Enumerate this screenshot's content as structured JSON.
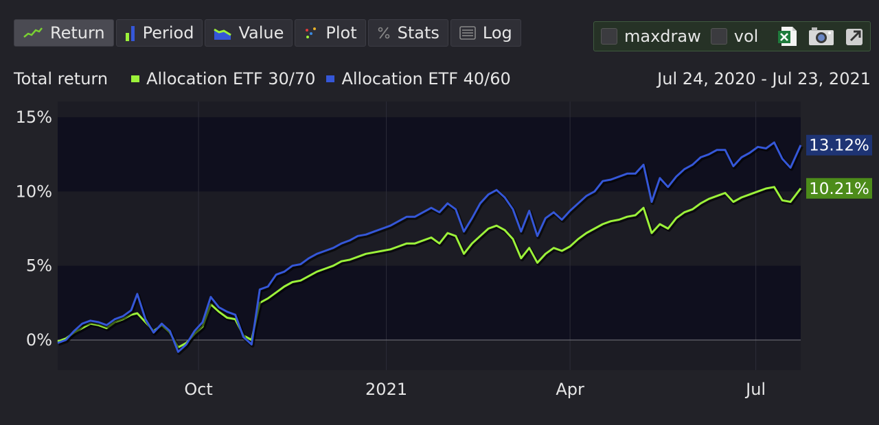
{
  "toolbar": {
    "buttons": [
      {
        "label": "Return",
        "icon": "line-chart-icon",
        "active": true
      },
      {
        "label": "Period",
        "icon": "bar-chart-icon",
        "active": false
      },
      {
        "label": "Value",
        "icon": "area-chart-icon",
        "active": false
      },
      {
        "label": "Plot",
        "icon": "scatter-plot-icon",
        "active": false
      },
      {
        "label": "Stats",
        "icon": "percent-icon",
        "active": false
      },
      {
        "label": "Log",
        "icon": "list-icon",
        "active": false
      }
    ]
  },
  "options": {
    "maxdraw_label": "maxdraw",
    "vol_label": "vol",
    "icons": [
      "excel-icon",
      "camera-icon",
      "share-icon"
    ]
  },
  "header": {
    "title": "Total return",
    "date_range": "Jul 24, 2020 - Jul 23, 2021"
  },
  "colors": {
    "background": "#222228",
    "plot_dark": "#0f0f1e",
    "plot_light": "#1c1c24",
    "series1": "#9cf23a",
    "series2": "#3557d8",
    "badge1": "#4d8c1a",
    "badge2": "#1e3474"
  },
  "chart_data": {
    "type": "line",
    "title": "Total return",
    "ylim": [
      -2,
      15
    ],
    "yticks": [
      0,
      5,
      10,
      15
    ],
    "ytick_labels": [
      "0%",
      "5%",
      "10%",
      "15%"
    ],
    "xlim": [
      "2020-07-24",
      "2021-07-23"
    ],
    "xticks": [
      "2020-10-01",
      "2021-01-01",
      "2021-04-01",
      "2021-07-01"
    ],
    "xtick_labels": [
      "Oct",
      "2021",
      "Apr",
      "Jul"
    ],
    "grid": true,
    "legend_position": "top",
    "series": [
      {
        "name": "Allocation ETF 30/70",
        "color": "#9cf23a",
        "end_label": "10.21%",
        "points": [
          [
            "2020-07-24",
            -0.1
          ],
          [
            "2020-07-28",
            0.1
          ],
          [
            "2020-08-01",
            0.5
          ],
          [
            "2020-08-05",
            0.8
          ],
          [
            "2020-08-09",
            1.1
          ],
          [
            "2020-08-13",
            1.0
          ],
          [
            "2020-08-17",
            0.8
          ],
          [
            "2020-08-21",
            1.2
          ],
          [
            "2020-08-25",
            1.4
          ],
          [
            "2020-08-29",
            1.7
          ],
          [
            "2020-09-01",
            1.8
          ],
          [
            "2020-09-05",
            1.2
          ],
          [
            "2020-09-09",
            0.6
          ],
          [
            "2020-09-13",
            1.0
          ],
          [
            "2020-09-17",
            0.5
          ],
          [
            "2020-09-21",
            -0.5
          ],
          [
            "2020-09-25",
            -0.2
          ],
          [
            "2020-09-29",
            0.4
          ],
          [
            "2020-10-03",
            0.9
          ],
          [
            "2020-10-07",
            2.4
          ],
          [
            "2020-10-11",
            1.9
          ],
          [
            "2020-10-15",
            1.5
          ],
          [
            "2020-10-19",
            1.4
          ],
          [
            "2020-10-23",
            0.3
          ],
          [
            "2020-10-27",
            0.0
          ],
          [
            "2020-10-31",
            2.5
          ],
          [
            "2020-11-04",
            2.8
          ],
          [
            "2020-11-08",
            3.2
          ],
          [
            "2020-11-12",
            3.6
          ],
          [
            "2020-11-16",
            3.9
          ],
          [
            "2020-11-20",
            4.0
          ],
          [
            "2020-11-24",
            4.3
          ],
          [
            "2020-11-28",
            4.6
          ],
          [
            "2020-12-02",
            4.8
          ],
          [
            "2020-12-06",
            5.0
          ],
          [
            "2020-12-10",
            5.3
          ],
          [
            "2020-12-14",
            5.4
          ],
          [
            "2020-12-18",
            5.6
          ],
          [
            "2020-12-22",
            5.8
          ],
          [
            "2020-12-26",
            5.9
          ],
          [
            "2020-12-30",
            6.0
          ],
          [
            "2021-01-03",
            6.1
          ],
          [
            "2021-01-07",
            6.3
          ],
          [
            "2021-01-11",
            6.5
          ],
          [
            "2021-01-15",
            6.5
          ],
          [
            "2021-01-19",
            6.7
          ],
          [
            "2021-01-23",
            6.9
          ],
          [
            "2021-01-27",
            6.5
          ],
          [
            "2021-01-31",
            7.2
          ],
          [
            "2021-02-04",
            7.0
          ],
          [
            "2021-02-08",
            5.8
          ],
          [
            "2021-02-12",
            6.5
          ],
          [
            "2021-02-16",
            7.0
          ],
          [
            "2021-02-20",
            7.5
          ],
          [
            "2021-02-24",
            7.7
          ],
          [
            "2021-02-28",
            7.4
          ],
          [
            "2021-03-04",
            6.8
          ],
          [
            "2021-03-08",
            5.5
          ],
          [
            "2021-03-12",
            6.2
          ],
          [
            "2021-03-16",
            5.2
          ],
          [
            "2021-03-20",
            5.8
          ],
          [
            "2021-03-24",
            6.2
          ],
          [
            "2021-03-28",
            6.0
          ],
          [
            "2021-04-01",
            6.3
          ],
          [
            "2021-04-05",
            6.8
          ],
          [
            "2021-04-09",
            7.2
          ],
          [
            "2021-04-13",
            7.5
          ],
          [
            "2021-04-17",
            7.8
          ],
          [
            "2021-04-21",
            8.0
          ],
          [
            "2021-04-25",
            8.1
          ],
          [
            "2021-04-29",
            8.3
          ],
          [
            "2021-05-03",
            8.4
          ],
          [
            "2021-05-07",
            8.9
          ],
          [
            "2021-05-11",
            7.2
          ],
          [
            "2021-05-15",
            7.8
          ],
          [
            "2021-05-19",
            7.5
          ],
          [
            "2021-05-23",
            8.2
          ],
          [
            "2021-05-27",
            8.6
          ],
          [
            "2021-05-31",
            8.8
          ],
          [
            "2021-06-04",
            9.2
          ],
          [
            "2021-06-08",
            9.5
          ],
          [
            "2021-06-12",
            9.7
          ],
          [
            "2021-06-16",
            9.9
          ],
          [
            "2021-06-20",
            9.3
          ],
          [
            "2021-06-24",
            9.6
          ],
          [
            "2021-06-28",
            9.8
          ],
          [
            "2021-07-02",
            10.0
          ],
          [
            "2021-07-06",
            10.2
          ],
          [
            "2021-07-10",
            10.3
          ],
          [
            "2021-07-14",
            9.4
          ],
          [
            "2021-07-18",
            9.3
          ],
          [
            "2021-07-23",
            10.21
          ]
        ]
      },
      {
        "name": "Allocation ETF 40/60",
        "color": "#3557d8",
        "end_label": "13.12%",
        "points": [
          [
            "2020-07-24",
            -0.2
          ],
          [
            "2020-07-28",
            0.0
          ],
          [
            "2020-08-01",
            0.6
          ],
          [
            "2020-08-05",
            1.1
          ],
          [
            "2020-08-09",
            1.3
          ],
          [
            "2020-08-13",
            1.2
          ],
          [
            "2020-08-17",
            1.0
          ],
          [
            "2020-08-21",
            1.4
          ],
          [
            "2020-08-25",
            1.6
          ],
          [
            "2020-08-29",
            2.0
          ],
          [
            "2020-09-01",
            3.1
          ],
          [
            "2020-09-05",
            1.4
          ],
          [
            "2020-09-09",
            0.5
          ],
          [
            "2020-09-13",
            1.1
          ],
          [
            "2020-09-17",
            0.6
          ],
          [
            "2020-09-21",
            -0.8
          ],
          [
            "2020-09-25",
            -0.3
          ],
          [
            "2020-09-29",
            0.6
          ],
          [
            "2020-10-03",
            1.2
          ],
          [
            "2020-10-07",
            2.9
          ],
          [
            "2020-10-11",
            2.2
          ],
          [
            "2020-10-15",
            1.9
          ],
          [
            "2020-10-19",
            1.7
          ],
          [
            "2020-10-23",
            0.2
          ],
          [
            "2020-10-27",
            -0.3
          ],
          [
            "2020-10-31",
            3.4
          ],
          [
            "2020-11-04",
            3.6
          ],
          [
            "2020-11-08",
            4.4
          ],
          [
            "2020-11-12",
            4.6
          ],
          [
            "2020-11-16",
            5.0
          ],
          [
            "2020-11-20",
            5.1
          ],
          [
            "2020-11-24",
            5.5
          ],
          [
            "2020-11-28",
            5.8
          ],
          [
            "2020-12-02",
            6.0
          ],
          [
            "2020-12-06",
            6.2
          ],
          [
            "2020-12-10",
            6.5
          ],
          [
            "2020-12-14",
            6.7
          ],
          [
            "2020-12-18",
            7.0
          ],
          [
            "2020-12-22",
            7.1
          ],
          [
            "2020-12-26",
            7.3
          ],
          [
            "2020-12-30",
            7.5
          ],
          [
            "2021-01-03",
            7.7
          ],
          [
            "2021-01-07",
            8.0
          ],
          [
            "2021-01-11",
            8.3
          ],
          [
            "2021-01-15",
            8.3
          ],
          [
            "2021-01-19",
            8.6
          ],
          [
            "2021-01-23",
            8.9
          ],
          [
            "2021-01-27",
            8.6
          ],
          [
            "2021-01-31",
            9.2
          ],
          [
            "2021-02-04",
            8.8
          ],
          [
            "2021-02-08",
            7.3
          ],
          [
            "2021-02-12",
            8.2
          ],
          [
            "2021-02-16",
            9.2
          ],
          [
            "2021-02-20",
            9.8
          ],
          [
            "2021-02-24",
            10.1
          ],
          [
            "2021-02-28",
            9.6
          ],
          [
            "2021-03-04",
            8.8
          ],
          [
            "2021-03-08",
            7.3
          ],
          [
            "2021-03-12",
            8.7
          ],
          [
            "2021-03-16",
            7.0
          ],
          [
            "2021-03-20",
            8.2
          ],
          [
            "2021-03-24",
            8.6
          ],
          [
            "2021-03-28",
            8.1
          ],
          [
            "2021-04-01",
            8.7
          ],
          [
            "2021-04-05",
            9.2
          ],
          [
            "2021-04-09",
            9.7
          ],
          [
            "2021-04-13",
            10.0
          ],
          [
            "2021-04-17",
            10.7
          ],
          [
            "2021-04-21",
            10.8
          ],
          [
            "2021-04-25",
            11.0
          ],
          [
            "2021-04-29",
            11.2
          ],
          [
            "2021-05-03",
            11.2
          ],
          [
            "2021-05-07",
            11.8
          ],
          [
            "2021-05-11",
            9.3
          ],
          [
            "2021-05-15",
            10.9
          ],
          [
            "2021-05-19",
            10.3
          ],
          [
            "2021-05-23",
            11.0
          ],
          [
            "2021-05-27",
            11.5
          ],
          [
            "2021-05-31",
            11.8
          ],
          [
            "2021-06-04",
            12.3
          ],
          [
            "2021-06-08",
            12.5
          ],
          [
            "2021-06-12",
            12.8
          ],
          [
            "2021-06-16",
            12.8
          ],
          [
            "2021-06-20",
            11.7
          ],
          [
            "2021-06-24",
            12.3
          ],
          [
            "2021-06-28",
            12.6
          ],
          [
            "2021-07-02",
            13.0
          ],
          [
            "2021-07-06",
            12.9
          ],
          [
            "2021-07-10",
            13.3
          ],
          [
            "2021-07-14",
            12.2
          ],
          [
            "2021-07-18",
            11.6
          ],
          [
            "2021-07-23",
            13.12
          ]
        ]
      }
    ]
  }
}
